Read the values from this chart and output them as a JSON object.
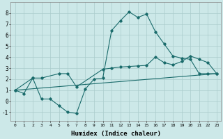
{
  "title": "",
  "xlabel": "Humidex (Indice chaleur)",
  "ylabel": "",
  "bg_color": "#cce8e8",
  "grid_color": "#aacccc",
  "line_color": "#1a6b6b",
  "xlim": [
    -0.5,
    23.5
  ],
  "ylim": [
    -1.8,
    9.0
  ],
  "xtick_labels": [
    "0",
    "1",
    "2",
    "3",
    "4",
    "5",
    "6",
    "7",
    "8",
    "9",
    "10",
    "11",
    "12",
    "13",
    "14",
    "15",
    "16",
    "17",
    "18",
    "19",
    "20",
    "21",
    "22",
    "23"
  ],
  "ytick_values": [
    -1,
    0,
    1,
    2,
    3,
    4,
    5,
    6,
    7,
    8
  ],
  "line1_x": [
    0,
    1,
    2,
    3,
    4,
    5,
    6,
    7,
    8,
    9,
    10,
    11,
    12,
    13,
    14,
    15,
    16,
    17,
    18,
    19,
    20,
    21,
    22,
    23
  ],
  "line1_y": [
    1.0,
    0.7,
    2.1,
    0.2,
    0.2,
    -0.4,
    -1.0,
    -1.1,
    1.1,
    2.0,
    2.1,
    6.4,
    7.3,
    8.1,
    7.6,
    7.9,
    6.3,
    5.2,
    4.1,
    3.9,
    3.8,
    2.5,
    2.5,
    2.5
  ],
  "line2_x": [
    0,
    2,
    3,
    5,
    6,
    7,
    10,
    11,
    12,
    13,
    14,
    15,
    16,
    17,
    18,
    19,
    20,
    21,
    22,
    23
  ],
  "line2_y": [
    1.0,
    2.1,
    2.1,
    2.5,
    2.5,
    1.3,
    2.9,
    3.0,
    3.1,
    3.15,
    3.2,
    3.25,
    4.0,
    3.5,
    3.3,
    3.6,
    4.1,
    3.8,
    3.5,
    2.5
  ],
  "line3_x": [
    0,
    23
  ],
  "line3_y": [
    1.0,
    2.5
  ]
}
